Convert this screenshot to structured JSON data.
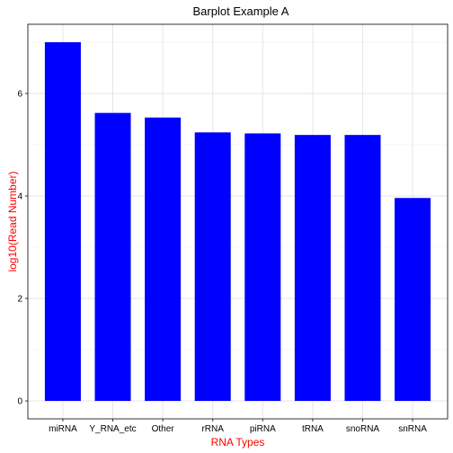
{
  "chart_data": {
    "type": "bar",
    "title": "Barplot Example A",
    "xlabel": "RNA Types",
    "ylabel": "log10(Read Number)",
    "categories": [
      "miRNA",
      "Y_RNA_etc",
      "Other",
      "rRNA",
      "piRNA",
      "tRNA",
      "snoRNA",
      "snRNA"
    ],
    "values": [
      7.0,
      5.62,
      5.53,
      5.24,
      5.22,
      5.19,
      5.19,
      3.96
    ],
    "ylim": [
      -0.35,
      7.35
    ],
    "yticks": [
      "0",
      "2",
      "4",
      "6"
    ],
    "grid": true,
    "colors": {
      "bar": "#0000ff",
      "axis_label": "#ff0000",
      "grid": "#ebebeb",
      "panel_border": "#333333"
    }
  }
}
